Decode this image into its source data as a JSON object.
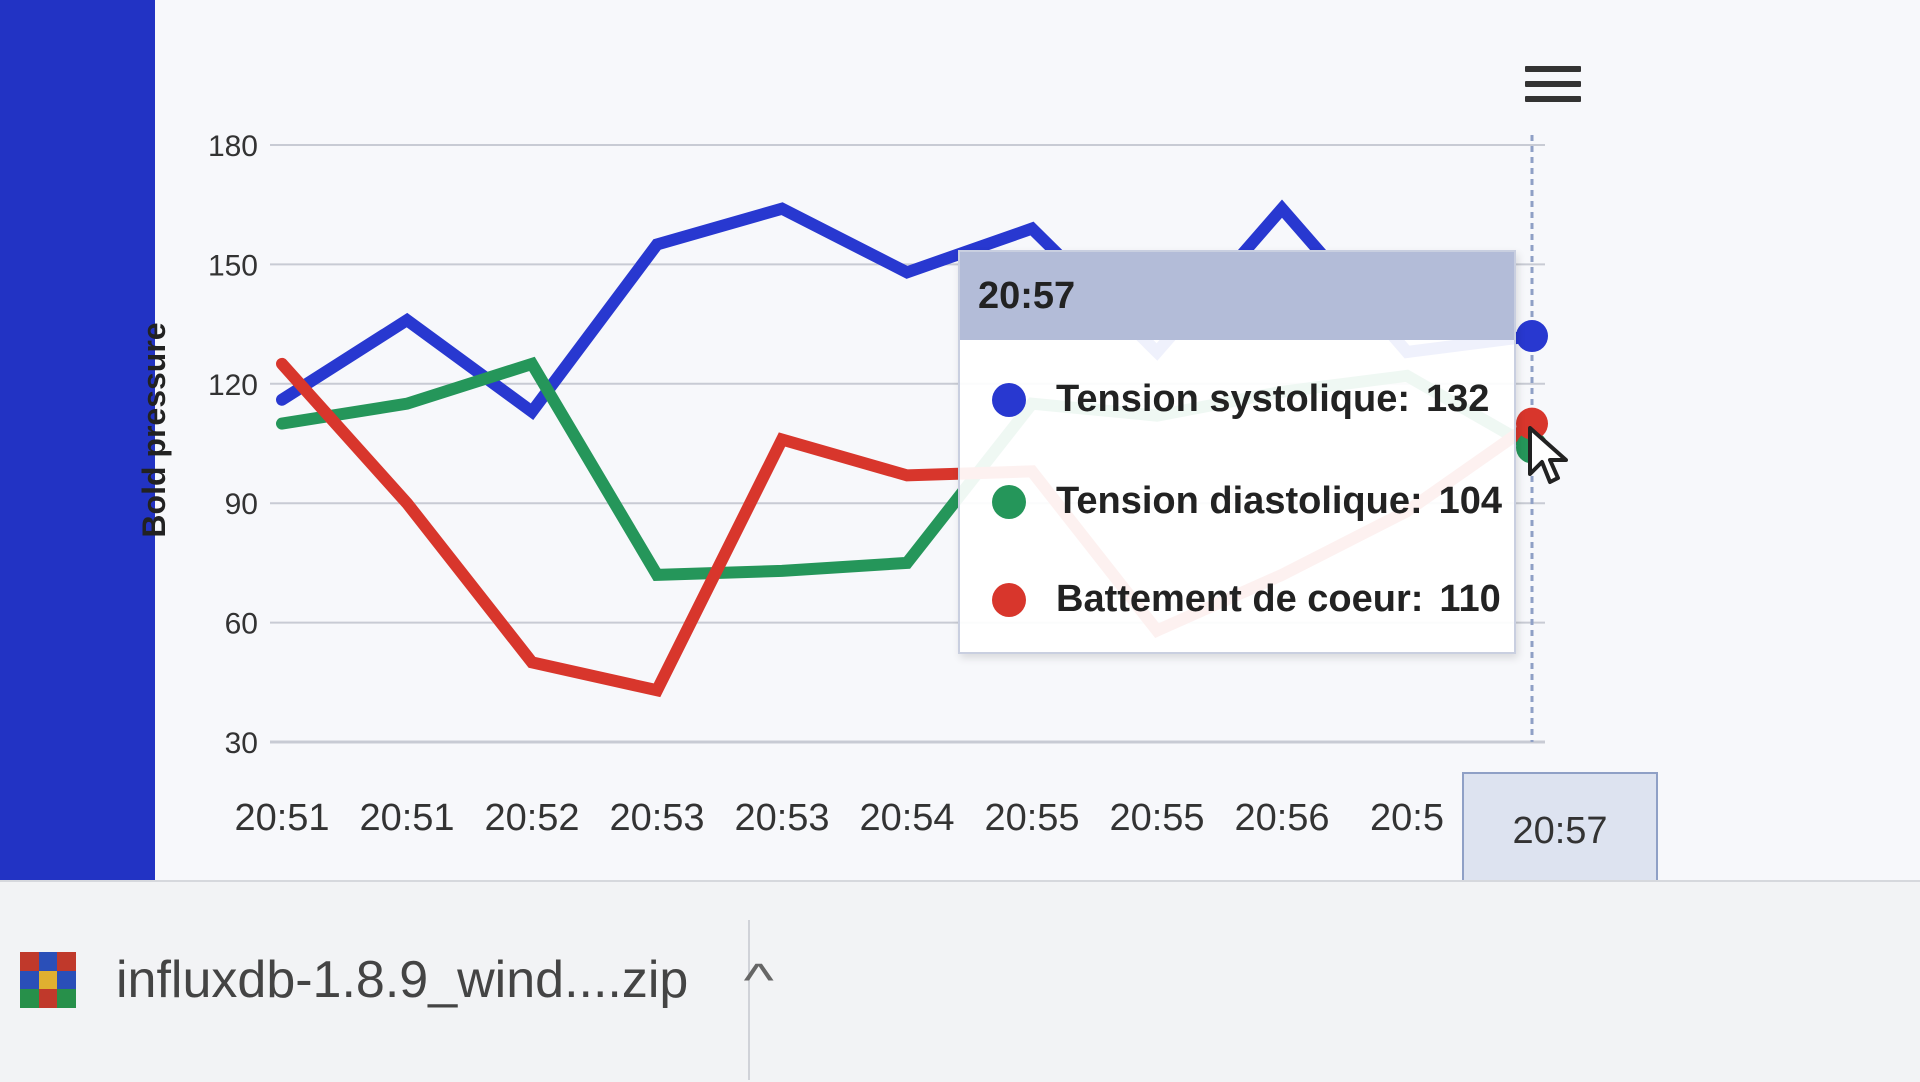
{
  "chart_data": {
    "type": "line",
    "ylabel": "Bold pressure",
    "xlabel": "",
    "ylim": [
      30,
      180
    ],
    "yticks": [
      30,
      60,
      90,
      120,
      150,
      180
    ],
    "categories": [
      "20:51",
      "20:51",
      "20:52",
      "20:53",
      "20:53",
      "20:54",
      "20:55",
      "20:55",
      "20:56",
      "20:5",
      "20:57"
    ],
    "series": [
      {
        "name": "Tension systolique",
        "color": "#2838d0",
        "values": [
          116,
          136,
          113,
          155,
          164,
          148,
          159,
          128,
          164,
          128,
          132
        ]
      },
      {
        "name": "Tension diastolique",
        "color": "#25965a",
        "values": [
          110,
          115,
          125,
          72,
          73,
          75,
          115,
          112,
          118,
          122,
          104
        ]
      },
      {
        "name": "Battement de coeur",
        "color": "#d8362c",
        "values": [
          125,
          90,
          50,
          43,
          106,
          97,
          98,
          58,
          72,
          88,
          110
        ]
      }
    ],
    "grid": true,
    "legend": "none",
    "highlighted_index": 10
  },
  "tooltip": {
    "title": "20:57",
    "rows": [
      {
        "label": "Tension systolique:",
        "value": "132",
        "color": "#2838d0"
      },
      {
        "label": "Tension diastolique:",
        "value": "104",
        "color": "#25965a"
      },
      {
        "label": "Battement de coeur:",
        "value": "110",
        "color": "#d8362c"
      }
    ]
  },
  "crosshair_label": "20:57",
  "menu": {
    "icon": "hamburger-menu-icon"
  },
  "download_bar": {
    "file_name": "influxdb-1.8.9_wind....zip",
    "icon": "zip-archive-icon",
    "chevron": "^"
  },
  "colors": {
    "sidebar": "#2233c4",
    "grid": "#c8cbd4",
    "axis_text": "#333333"
  }
}
